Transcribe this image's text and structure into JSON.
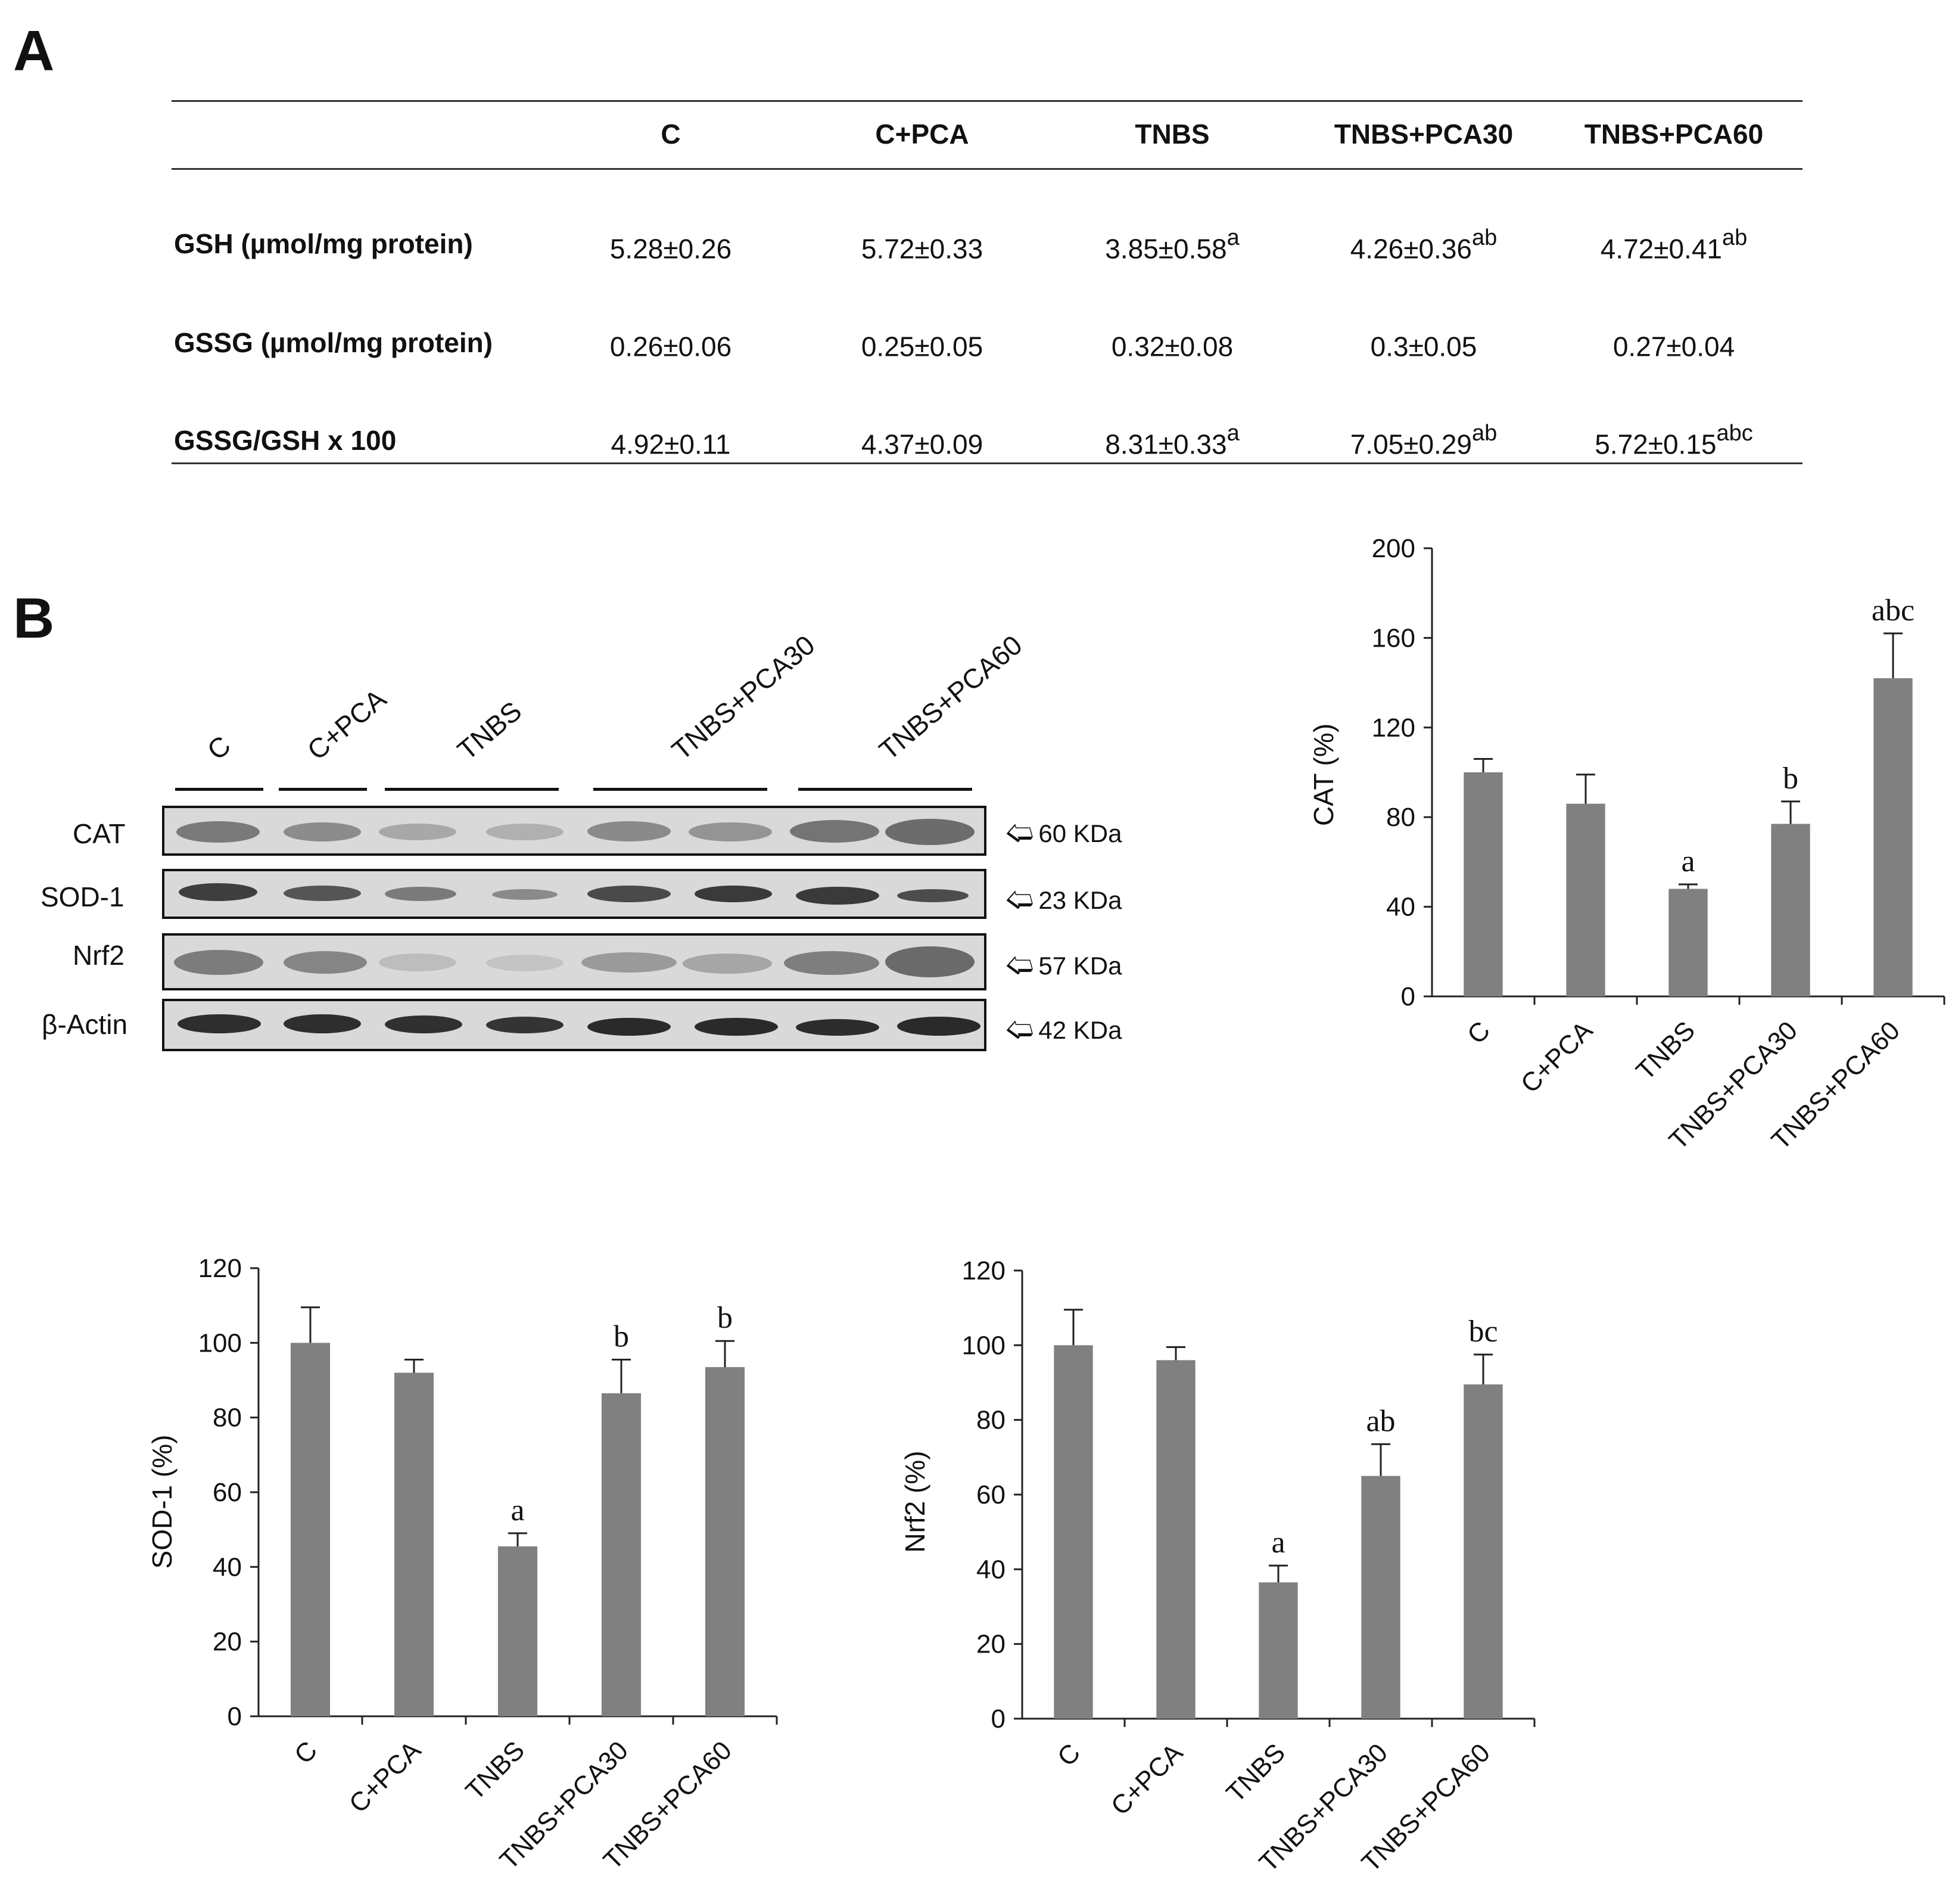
{
  "panel_a": {
    "letter": "A",
    "columns": [
      "C",
      "C+PCA",
      "TNBS",
      "TNBS+PCA30",
      "TNBS+PCA60"
    ],
    "rows": [
      {
        "label": "GSH (µmol/mg protein)",
        "cells": [
          {
            "v": "5.28±0.26",
            "sup": ""
          },
          {
            "v": "5.72±0.33",
            "sup": ""
          },
          {
            "v": "3.85±0.58",
            "sup": "a"
          },
          {
            "v": "4.26±0.36",
            "sup": "ab"
          },
          {
            "v": "4.72±0.41",
            "sup": "ab"
          }
        ]
      },
      {
        "label": "GSSG (µmol/mg protein)",
        "cells": [
          {
            "v": "0.26±0.06",
            "sup": ""
          },
          {
            "v": "0.25±0.05",
            "sup": ""
          },
          {
            "v": "0.32±0.08",
            "sup": ""
          },
          {
            "v": "0.3±0.05",
            "sup": ""
          },
          {
            "v": "0.27±0.04",
            "sup": ""
          }
        ]
      },
      {
        "label": "GSSG/GSH x 100",
        "cells": [
          {
            "v": "4.92±0.11",
            "sup": ""
          },
          {
            "v": "4.37±0.09",
            "sup": ""
          },
          {
            "v": "8.31±0.33",
            "sup": "a"
          },
          {
            "v": "7.05±0.29",
            "sup": "ab"
          },
          {
            "v": "5.72±0.15",
            "sup": "abc"
          }
        ]
      }
    ]
  },
  "panel_b": {
    "letter": "B",
    "lane_groups": [
      "C",
      "C+PCA",
      "TNBS",
      "TNBS+PCA30",
      "TNBS+PCA60"
    ],
    "blots": [
      {
        "name": "CAT",
        "kda": "60 KDa"
      },
      {
        "name": "SOD-1",
        "kda": "23 KDa"
      },
      {
        "name": "Nrf2",
        "kda": "57 KDa"
      },
      {
        "name": "β-Actin",
        "kda": "42 KDa"
      }
    ]
  },
  "bar_color": "#808080",
  "chart_data": [
    {
      "type": "bar",
      "id": "cat",
      "title": "",
      "ylabel": "CAT  (%)",
      "xlabel": "",
      "categories": [
        "C",
        "C+PCA",
        "TNBS",
        "TNBS+PCA30",
        "TNBS+PCA60"
      ],
      "values": [
        100,
        86,
        48,
        77,
        142
      ],
      "errors": [
        6,
        13,
        2,
        10,
        20
      ],
      "annotations": [
        "",
        "",
        "a",
        "b",
        "abc"
      ],
      "ylim": [
        0,
        200
      ],
      "yticks": [
        0,
        40,
        80,
        120,
        160,
        200
      ]
    },
    {
      "type": "bar",
      "id": "sod1",
      "title": "",
      "ylabel": "SOD-1 (%)",
      "xlabel": "",
      "categories": [
        "C",
        "C+PCA",
        "TNBS",
        "TNBS+PCA30",
        "TNBS+PCA60"
      ],
      "values": [
        100,
        92,
        45.5,
        86.5,
        93.5
      ],
      "errors": [
        9.5,
        3.5,
        3.5,
        9,
        7
      ],
      "annotations": [
        "",
        "",
        "a",
        "b",
        "b"
      ],
      "ylim": [
        0,
        120
      ],
      "yticks": [
        0,
        20,
        40,
        60,
        80,
        100,
        120
      ]
    },
    {
      "type": "bar",
      "id": "nrf2",
      "title": "",
      "ylabel": "Nrf2  (%)",
      "xlabel": "",
      "categories": [
        "C",
        "C+PCA",
        "TNBS",
        "TNBS+PCA30",
        "TNBS+PCA60"
      ],
      "values": [
        100,
        96,
        36.5,
        65,
        89.5
      ],
      "errors": [
        9.5,
        3.5,
        4.5,
        8.5,
        8
      ],
      "annotations": [
        "",
        "",
        "a",
        "ab",
        "bc"
      ],
      "ylim": [
        0,
        120
      ],
      "yticks": [
        0,
        20,
        40,
        60,
        80,
        100,
        120
      ]
    }
  ]
}
